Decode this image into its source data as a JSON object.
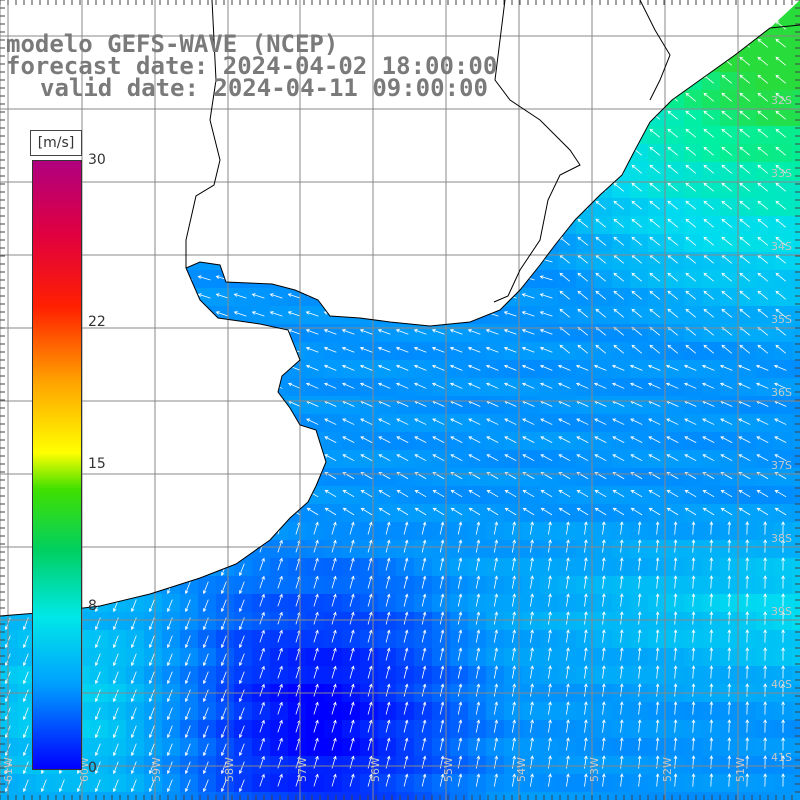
{
  "title": {
    "line1": "modelo GEFS-WAVE (NCEP)",
    "line2": "forecast date: 2024-04-02 18:00:00",
    "line3": "valid date: 2024-04-11 09:00:00"
  },
  "colorbar": {
    "unit": "[m/s]",
    "ticks": [
      {
        "label": "30",
        "value": 30
      },
      {
        "label": "22",
        "value": 22
      },
      {
        "label": "15",
        "value": 15
      },
      {
        "label": "8",
        "value": 8
      },
      {
        "label": "0",
        "value": 0
      }
    ],
    "range": [
      0,
      30
    ],
    "colors": [
      "#0000ff",
      "#00a0ff",
      "#00e8e8",
      "#00d060",
      "#40e000",
      "#ffff00",
      "#ffa000",
      "#ff2000",
      "#e00040",
      "#b00080"
    ]
  },
  "map": {
    "lat_labels": [
      "32S",
      "33S",
      "34S",
      "35S",
      "36S",
      "37S",
      "38S",
      "39S",
      "40S",
      "41S"
    ],
    "lon_labels": [
      "61W",
      "60W",
      "59W",
      "58W",
      "57W",
      "56W",
      "55W",
      "54W",
      "53W",
      "52W",
      "51W"
    ],
    "land_color": "#ffffff",
    "coast_color": "#000000",
    "grid_color": "#888888",
    "arrow_color": "#ffffff"
  }
}
